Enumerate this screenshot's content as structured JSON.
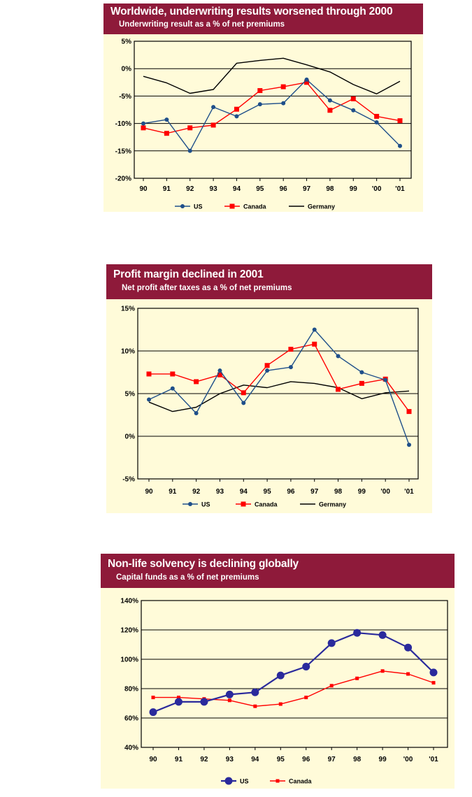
{
  "charts": [
    {
      "title": "Worldwide, underwriting results worsened through 2000",
      "subtitle": "Underwriting result as a % of net premiums"
    },
    {
      "title": "Profit margin declined in 2001",
      "subtitle": "Net profit after taxes as a % of net premiums"
    },
    {
      "title": "Non-life solvency is declining globally",
      "subtitle": "Capital funds as a % of net premiums"
    }
  ],
  "colors": {
    "header_bg": "#8e1a3a",
    "panel_bg": "#fffbd9",
    "us": "#1f4f8a",
    "us_solvency": "#2a2a9c",
    "canada": "#ff0000",
    "germany": "#000000"
  },
  "chart_data": [
    {
      "type": "line",
      "title": "Worldwide, underwriting results worsened through 2000",
      "subtitle": "Underwriting result as a % of net premiums",
      "categories": [
        "90",
        "91",
        "92",
        "93",
        "94",
        "95",
        "96",
        "97",
        "98",
        "99",
        "'00",
        "'01"
      ],
      "ylim": [
        -20,
        5
      ],
      "yticks": [
        5,
        0,
        -5,
        -10,
        -15,
        -20
      ],
      "ytick_labels": [
        "5%",
        "0%",
        "-5%",
        "-10%",
        "-15%",
        "-20%"
      ],
      "series": [
        {
          "name": "US",
          "marker": "circle",
          "values": [
            -10,
            -9.3,
            -15,
            -7,
            -8.7,
            -6.5,
            -6.3,
            -2,
            -5.8,
            -7.6,
            -9.8,
            -14.1
          ]
        },
        {
          "name": "Canada",
          "marker": "square",
          "values": [
            -10.8,
            -11.8,
            -10.8,
            -10.3,
            -7.4,
            -4,
            -3.3,
            -2.5,
            -7.6,
            -5.5,
            -8.7,
            -9.5
          ]
        },
        {
          "name": "Germany",
          "marker": "none",
          "values": [
            -1.4,
            -2.6,
            -4.5,
            -3.8,
            1,
            1.5,
            1.9,
            0.7,
            -0.6,
            -2.9,
            -4.6,
            -2.3
          ]
        }
      ],
      "legend": [
        "US",
        "Canada",
        "Germany"
      ]
    },
    {
      "type": "line",
      "title": "Profit margin declined in 2001",
      "subtitle": "Net profit after taxes as a % of net premiums",
      "categories": [
        "90",
        "91",
        "92",
        "93",
        "94",
        "95",
        "96",
        "97",
        "98",
        "99",
        "'00",
        "'01"
      ],
      "ylim": [
        -5,
        15
      ],
      "yticks": [
        15,
        10,
        5,
        0,
        -5
      ],
      "ytick_labels": [
        "15%",
        "10%",
        "5%",
        "0%",
        "-5%"
      ],
      "series": [
        {
          "name": "US",
          "marker": "circle",
          "values": [
            4.3,
            5.6,
            2.7,
            7.7,
            3.9,
            7.7,
            8.1,
            12.5,
            9.4,
            7.5,
            6.6,
            -1
          ]
        },
        {
          "name": "Canada",
          "marker": "square",
          "values": [
            7.3,
            7.3,
            6.4,
            7.2,
            5.1,
            8.3,
            10.2,
            10.8,
            5.5,
            6.2,
            6.7,
            2.9
          ]
        },
        {
          "name": "Germany",
          "marker": "none",
          "values": [
            4,
            2.9,
            3.4,
            5,
            6,
            5.7,
            6.4,
            6.2,
            5.7,
            4.4,
            5.1,
            5.3
          ]
        }
      ],
      "legend": [
        "US",
        "Canada",
        "Germany"
      ]
    },
    {
      "type": "line",
      "title": "Non-life solvency is declining globally",
      "subtitle": "Capital funds as a % of net premiums",
      "categories": [
        "90",
        "91",
        "92",
        "93",
        "94",
        "95",
        "96",
        "97",
        "98",
        "99",
        "'00",
        "'01"
      ],
      "ylim": [
        40,
        140
      ],
      "yticks": [
        140,
        120,
        100,
        80,
        60,
        40
      ],
      "ytick_labels": [
        "140%",
        "120%",
        "100%",
        "80%",
        "60%",
        "40%"
      ],
      "series": [
        {
          "name": "US",
          "marker": "big-circle",
          "values": [
            64,
            71,
            71,
            76,
            77.5,
            89,
            95,
            111,
            118,
            116.5,
            108,
            91
          ]
        },
        {
          "name": "Canada",
          "marker": "small-square",
          "values": [
            74,
            74,
            73,
            72,
            68,
            69.5,
            74,
            82,
            87,
            92,
            90,
            84
          ]
        }
      ],
      "legend": [
        "US",
        "Canada"
      ]
    }
  ]
}
